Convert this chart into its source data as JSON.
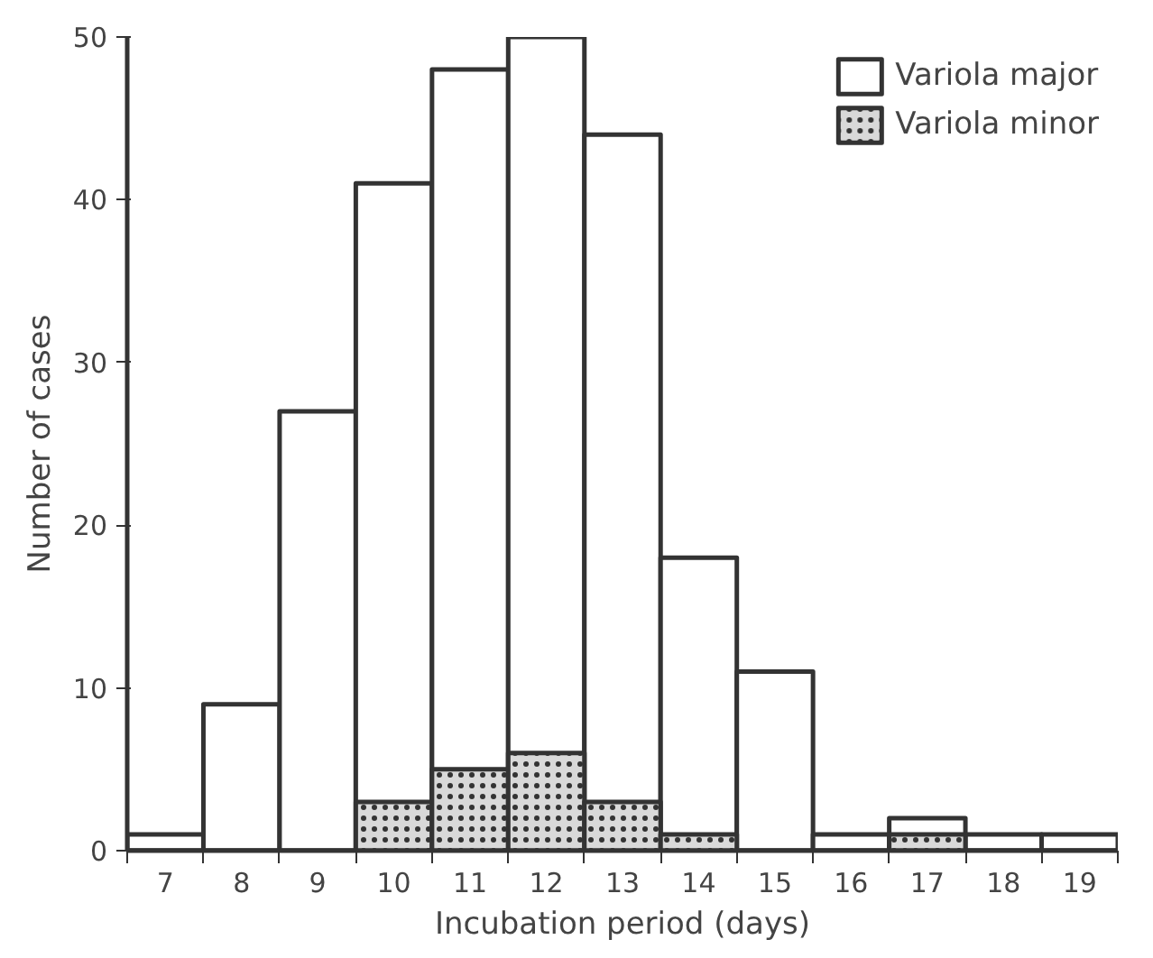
{
  "chart_data": {
    "type": "histogram",
    "xlabel": "Incubation period (days)",
    "ylabel": "Number of cases",
    "bins": [
      6.5,
      7.5,
      8.5,
      9.5,
      10.5,
      11.5,
      12.5,
      13.5,
      14.5,
      15.5,
      16.5,
      17.5,
      18.5,
      19.5
    ],
    "series": [
      {
        "name": "Variola major",
        "color": "#ffffff",
        "values": [
          1,
          9,
          27,
          41,
          48,
          50,
          44,
          18,
          11,
          1,
          2,
          1,
          1
        ]
      },
      {
        "name": "Variola minor",
        "color": "#d9d9d9",
        "values": [
          0,
          0,
          0,
          3,
          5,
          6,
          3,
          1,
          0,
          0,
          1,
          0,
          0
        ]
      }
    ],
    "xlim": [
      6.5,
      19.5
    ],
    "ylim": [
      0,
      50
    ],
    "xticks": [
      {
        "value": 6.5,
        "label": null
      },
      7,
      {
        "value": 7.5,
        "label": null
      },
      8,
      {
        "value": 8.5,
        "label": null
      },
      9,
      {
        "value": 9.5,
        "label": null
      },
      10,
      {
        "value": 10.5,
        "label": null
      },
      11,
      {
        "value": 11.5,
        "label": null
      },
      12,
      {
        "value": 12.5,
        "label": null
      },
      13,
      {
        "value": 13.5,
        "label": null
      },
      14,
      {
        "value": 14.5,
        "label": null
      },
      15,
      {
        "value": 15.5,
        "label": null
      },
      16,
      {
        "value": 16.5,
        "label": null
      },
      17,
      {
        "value": 17.5,
        "label": null
      },
      18,
      {
        "value": 18.5,
        "label": null
      },
      19,
      {
        "value": 19.5,
        "label": null
      }
    ],
    "yticks": [
      0,
      10,
      20,
      30,
      40,
      50
    ],
    "grid": false,
    "legend": "top right"
  }
}
